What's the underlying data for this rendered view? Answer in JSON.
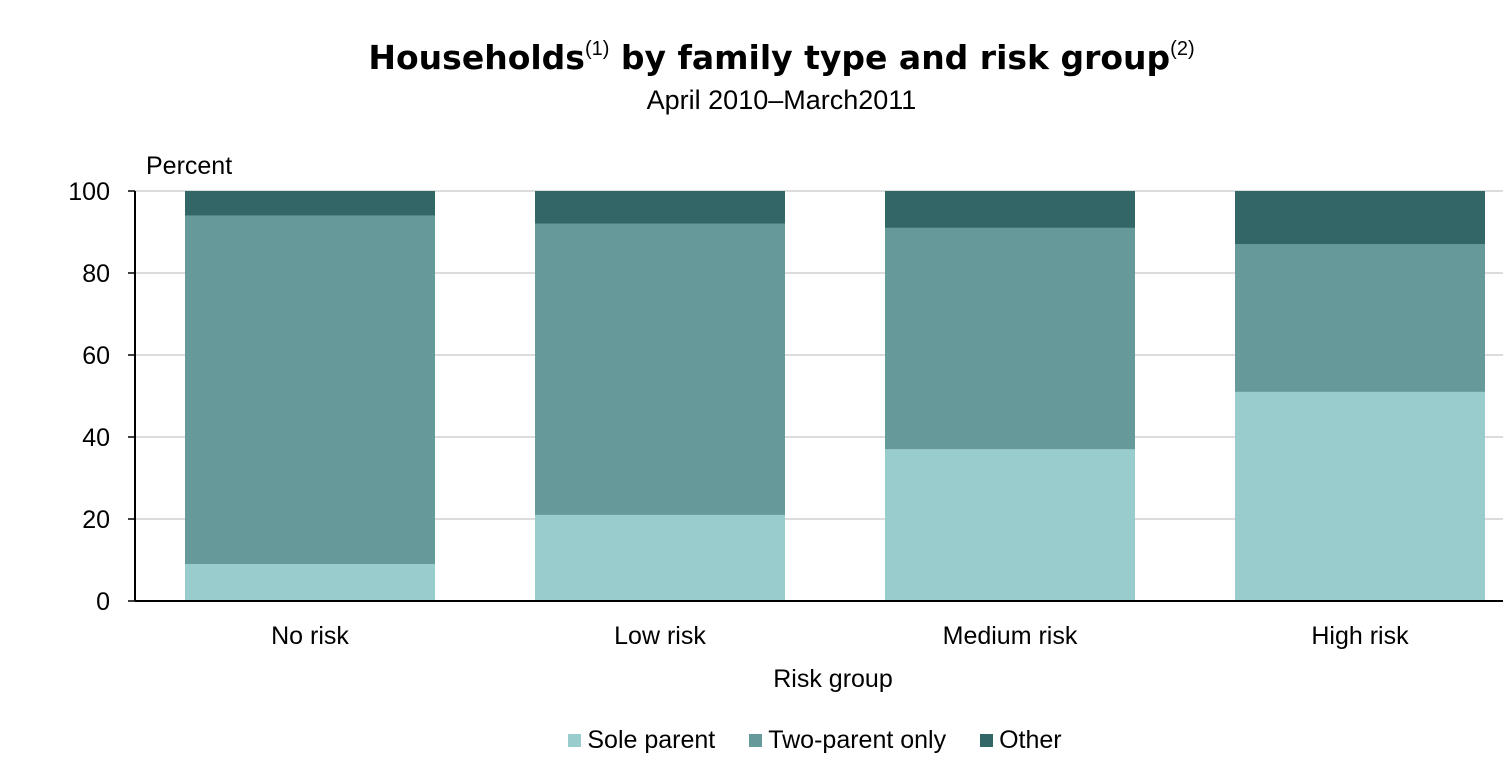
{
  "chart_data": {
    "type": "bar",
    "stacked": true,
    "title_main": "Households",
    "title_sup1": "(1)",
    "title_rest": "by family type and risk group",
    "title_sup2": "(2)",
    "subtitle": "April 2010–March2011",
    "ylabel": "Percent",
    "xlabel": "Risk group",
    "ylim": [
      0,
      100
    ],
    "yticks": [
      0,
      20,
      40,
      60,
      80,
      100
    ],
    "grid": true,
    "legend_position": "bottom",
    "categories": [
      "No risk",
      "Low risk",
      "Medium risk",
      "High risk"
    ],
    "series": [
      {
        "name": "Sole parent",
        "color": "#99cccc",
        "values": [
          9,
          21,
          37,
          51
        ]
      },
      {
        "name": "Two-parent only",
        "color": "#669999",
        "values": [
          85,
          71,
          54,
          36
        ]
      },
      {
        "name": "Other",
        "color": "#336666",
        "values": [
          6,
          8,
          9,
          13
        ]
      }
    ]
  }
}
